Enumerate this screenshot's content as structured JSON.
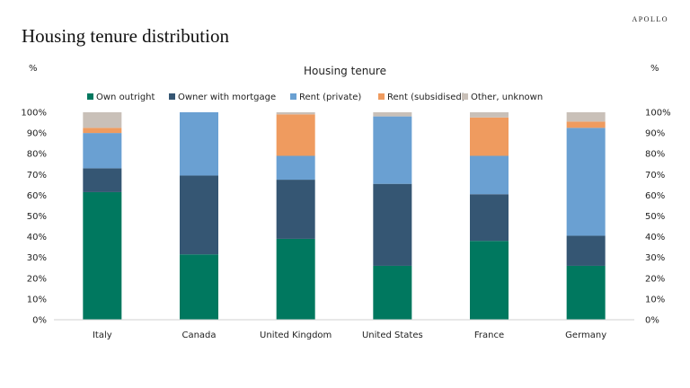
{
  "brand": "APOLLO",
  "page_title": "Housing tenure distribution",
  "chart_data": {
    "type": "bar",
    "stacked": true,
    "title": "Housing tenure",
    "ylabel_left": "%",
    "ylabel_right": "%",
    "ylim": [
      0,
      100
    ],
    "yticks": [
      "0%",
      "10%",
      "20%",
      "30%",
      "40%",
      "50%",
      "60%",
      "70%",
      "80%",
      "90%",
      "100%"
    ],
    "legend_position": "top",
    "categories": [
      "Italy",
      "Canada",
      "United Kingdom",
      "United States",
      "France",
      "Germany"
    ],
    "series": [
      {
        "name": "Own outright",
        "color": "#00785f",
        "values": [
          61.5,
          31.5,
          39,
          26,
          38,
          26
        ]
      },
      {
        "name": "Owner with mortgage",
        "color": "#355673",
        "values": [
          11.5,
          38,
          28.5,
          39.5,
          22.5,
          14.5
        ]
      },
      {
        "name": "Rent (private)",
        "color": "#6aa0d2",
        "values": [
          17,
          30.5,
          11.5,
          32.5,
          18.5,
          52
        ]
      },
      {
        "name": "Rent (subsidised)",
        "color": "#ef9b5f",
        "values": [
          2.5,
          0,
          20,
          0,
          18.5,
          3
        ]
      },
      {
        "name": "Other, unknown",
        "color": "#c9c0b8",
        "values": [
          7.5,
          0,
          1,
          2,
          2.5,
          4.5
        ]
      }
    ]
  }
}
